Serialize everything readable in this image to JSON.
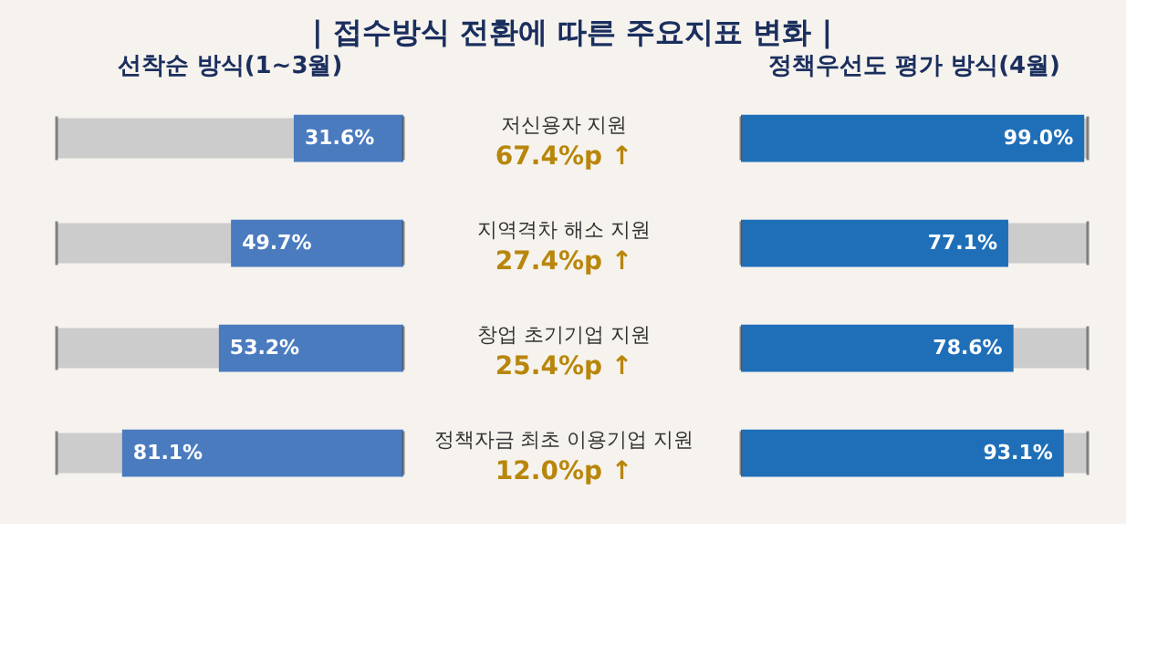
{
  "chart_data": [
    {
      "type": "bar",
      "orientation": "horizontal",
      "title": "선착순 방식(1~3월)",
      "categories": [
        "저신용자 지원",
        "지역격차 해소 지원",
        "창업 초기기업 지원",
        "정책자금 최초 이용기업 지원"
      ],
      "values": [
        31.6,
        49.7,
        53.2,
        81.1
      ],
      "value_labels": [
        "31.6%",
        "49.7%",
        "53.2%",
        "81.1%"
      ],
      "color": "#4a7bbf",
      "xlim": [
        100,
        0
      ],
      "annotations": [
        "| 접수방식 전환에 따른 주요지표 변화 |",
        "67.4%p ↑",
        "27.4%p ↑",
        "25.4%p ↑",
        "12.0%p ↑"
      ]
    },
    {
      "type": "bar",
      "orientation": "horizontal",
      "title": "정책우선도 평가 방식(4월)",
      "categories": [
        null,
        null,
        null,
        null
      ],
      "values": [
        99.0,
        77.1,
        78.6,
        93.1
      ],
      "value_labels": [
        "99.0%",
        "77.1%",
        "78.6%",
        "93.1%"
      ],
      "color": "#1f6fb8",
      "xlim": [
        0,
        100
      ]
    }
  ]
}
